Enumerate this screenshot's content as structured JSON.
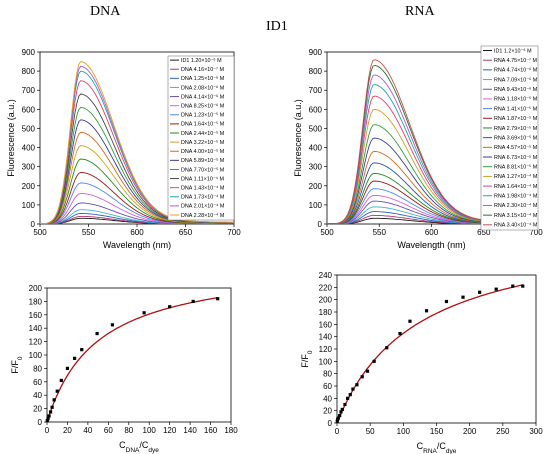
{
  "headers": {
    "dna": "DNA",
    "id": "ID1",
    "rna": "RNA"
  },
  "chart_data": [
    {
      "id": "dna_spectra",
      "type": "line",
      "xlabel": "Wavelength (nm)",
      "ylabel": "Fluorescence (a.u.)",
      "xlim": [
        500,
        700
      ],
      "ylim": [
        0,
        900
      ],
      "xticks": [
        "500",
        "550",
        "600",
        "650",
        "700"
      ],
      "yticks": [
        "0",
        "100",
        "200",
        "300",
        "400",
        "500",
        "600",
        "700",
        "800",
        "900"
      ],
      "peak_x": 542,
      "legend_position": "top-right",
      "series": [
        {
          "name": "ID1 1.20×10⁻⁶ M",
          "color": "#1a1a1a",
          "peak": 30
        },
        {
          "name": "DNA 4.16×10⁻⁷ M",
          "color": "#b23a6b",
          "peak": 40
        },
        {
          "name": "DNA 1.25×10⁻⁶ M",
          "color": "#2f5fc4",
          "peak": 55
        },
        {
          "name": "DNA 2.08×10⁻⁶ M",
          "color": "#3fb6c6",
          "peak": 75
        },
        {
          "name": "DNA 4.14×10⁻⁶ M",
          "color": "#6a4fb0",
          "peak": 110
        },
        {
          "name": "DNA 8.25×10⁻⁶ M",
          "color": "#d95fcf",
          "peak": 160
        },
        {
          "name": "DNA 1.23×10⁻⁵ M",
          "color": "#4f86f7",
          "peak": 215
        },
        {
          "name": "DNA 1.64×10⁻⁵ M",
          "color": "#9b1a1a",
          "peak": 270
        },
        {
          "name": "DNA 2.44×10⁻⁵ M",
          "color": "#1f8a1f",
          "peak": 340
        },
        {
          "name": "DNA 3.22×10⁻⁵ M",
          "color": "#c9a227",
          "peak": 410
        },
        {
          "name": "DNA 4.00×10⁻⁵ M",
          "color": "#d06a1f",
          "peak": 480
        },
        {
          "name": "DNA 5.89×10⁻⁵ M",
          "color": "#3a3a9a",
          "peak": 545
        },
        {
          "name": "DNA 7.70×10⁻⁵ M",
          "color": "#2e9e3e",
          "peak": 610
        },
        {
          "name": "DNA 1.11×10⁻⁴ M",
          "color": "#444444",
          "peak": 680
        },
        {
          "name": "DNA 1.43×10⁻⁴ M",
          "color": "#e23f6f",
          "peak": 750
        },
        {
          "name": "DNA 1.73×10⁻⁴ M",
          "color": "#1ea3a8",
          "peak": 800
        },
        {
          "name": "DNA 2.01×10⁻⁴ M",
          "color": "#b05ad0",
          "peak": 825
        },
        {
          "name": "DNA 2.28×10⁻⁴ M",
          "color": "#e0a020",
          "peak": 850
        }
      ]
    },
    {
      "id": "rna_spectra",
      "type": "line",
      "xlabel": "Wavelength (nm)",
      "ylabel": "Fluorescence (a.u.)",
      "xlim": [
        500,
        700
      ],
      "ylim": [
        0,
        900
      ],
      "xticks": [
        "500",
        "550",
        "600",
        "650",
        "700"
      ],
      "yticks": [
        "0",
        "100",
        "200",
        "300",
        "400",
        "500",
        "600",
        "700",
        "800",
        "900"
      ],
      "peak_x": 545,
      "legend_position": "top-right",
      "series": [
        {
          "name": "ID1  1.2×10⁻⁶ M",
          "color": "#1a1a1a",
          "peak": 30
        },
        {
          "name": "RNA 4.75×10⁻⁷ M",
          "color": "#b23a6b",
          "peak": 45
        },
        {
          "name": "RNA 4.74×10⁻⁶ M",
          "color": "#2f5fc4",
          "peak": 65
        },
        {
          "name": "RNA 7.09×10⁻⁶ M",
          "color": "#3fb6c6",
          "peak": 90
        },
        {
          "name": "RNA 9.43×10⁻⁶ M",
          "color": "#6a4fb0",
          "peak": 120
        },
        {
          "name": "RNA 1.18×10⁻⁵ M",
          "color": "#d95fcf",
          "peak": 150
        },
        {
          "name": "RNA 1.41×10⁻⁵ M",
          "color": "#4f86f7",
          "peak": 185
        },
        {
          "name": "RNA 1.87×10⁻⁵ M",
          "color": "#9b1a1a",
          "peak": 225
        },
        {
          "name": "RNA 2.79×10⁻⁵ M",
          "color": "#1f8a1f",
          "peak": 265
        },
        {
          "name": "RNA 3.69×10⁻⁵ M",
          "color": "#2255aa",
          "peak": 320
        },
        {
          "name": "RNA 4.57×10⁻⁵ M",
          "color": "#d06a1f",
          "peak": 380
        },
        {
          "name": "RNA 6.73×10⁻⁵ M",
          "color": "#3a3a9a",
          "peak": 450
        },
        {
          "name": "RNA 8.81×10⁻⁵ M",
          "color": "#2e9e3e",
          "peak": 520
        },
        {
          "name": "RNA 1.27×10⁻⁴ M",
          "color": "#c9a227",
          "peak": 600
        },
        {
          "name": "RNA 1.64×10⁻⁴ M",
          "color": "#e23f6f",
          "peak": 670
        },
        {
          "name": "RNA 1.98×10⁻⁴ M",
          "color": "#1ea3a8",
          "peak": 730
        },
        {
          "name": "RNA 2.30×10⁻⁴ M",
          "color": "#b05ad0",
          "peak": 780
        },
        {
          "name": "RNA 3.15×10⁻⁴ M",
          "color": "#2e6e2e",
          "peak": 830
        },
        {
          "name": "RNA 3.40×10⁻⁴ M",
          "color": "#c44f4f",
          "peak": 860
        }
      ]
    },
    {
      "id": "dna_binding",
      "type": "scatter",
      "xlabel_main": "C",
      "xlabel_sub1": "DNA",
      "xlabel_mid": "/C",
      "xlabel_sub2": "dye",
      "ylabel_main": "F/F",
      "ylabel_sub": "0",
      "xlim": [
        0,
        180
      ],
      "ylim": [
        0,
        200
      ],
      "xticks": [
        "0",
        "20",
        "40",
        "60",
        "80",
        "100",
        "120",
        "140",
        "160",
        "180"
      ],
      "yticks": [
        "0",
        "20",
        "40",
        "60",
        "80",
        "100",
        "120",
        "140",
        "160",
        "180",
        "200"
      ],
      "fit": {
        "max": 240,
        "k": 49
      },
      "points": [
        [
          0.3,
          2
        ],
        [
          1,
          5
        ],
        [
          2,
          9
        ],
        [
          3.5,
          15
        ],
        [
          5,
          22
        ],
        [
          7,
          33
        ],
        [
          10,
          46
        ],
        [
          14,
          62
        ],
        [
          20,
          80
        ],
        [
          27,
          95
        ],
        [
          34,
          108
        ],
        [
          49,
          132
        ],
        [
          64,
          145
        ],
        [
          95,
          163
        ],
        [
          120,
          172
        ],
        [
          143,
          180
        ],
        [
          167,
          184
        ]
      ]
    },
    {
      "id": "rna_binding",
      "type": "scatter",
      "xlabel_main": "C",
      "xlabel_sub1": "RNA",
      "xlabel_mid": "/C",
      "xlabel_sub2": "dye",
      "ylabel_main": "F/F",
      "ylabel_sub": "0",
      "xlim": [
        0,
        300
      ],
      "ylim": [
        0,
        240
      ],
      "xticks": [
        "0",
        "50",
        "100",
        "150",
        "200",
        "250",
        "300"
      ],
      "yticks": [
        "0",
        "20",
        "40",
        "60",
        "80",
        "100",
        "120",
        "140",
        "160",
        "180",
        "200",
        "220",
        "240"
      ],
      "fit": {
        "max": 320,
        "k": 120
      },
      "points": [
        [
          0.4,
          3
        ],
        [
          1,
          6
        ],
        [
          2,
          8
        ],
        [
          4,
          12
        ],
        [
          6,
          18
        ],
        [
          8,
          22
        ],
        [
          12,
          30
        ],
        [
          16,
          40
        ],
        [
          20,
          46
        ],
        [
          24,
          55
        ],
        [
          30,
          62
        ],
        [
          38,
          75
        ],
        [
          46,
          84
        ],
        [
          56,
          100
        ],
        [
          75,
          122
        ],
        [
          95,
          145
        ],
        [
          110,
          165
        ],
        [
          135,
          182
        ],
        [
          165,
          197
        ],
        [
          190,
          204
        ],
        [
          215,
          212
        ],
        [
          240,
          217
        ],
        [
          265,
          222
        ],
        [
          280,
          222
        ]
      ]
    }
  ]
}
